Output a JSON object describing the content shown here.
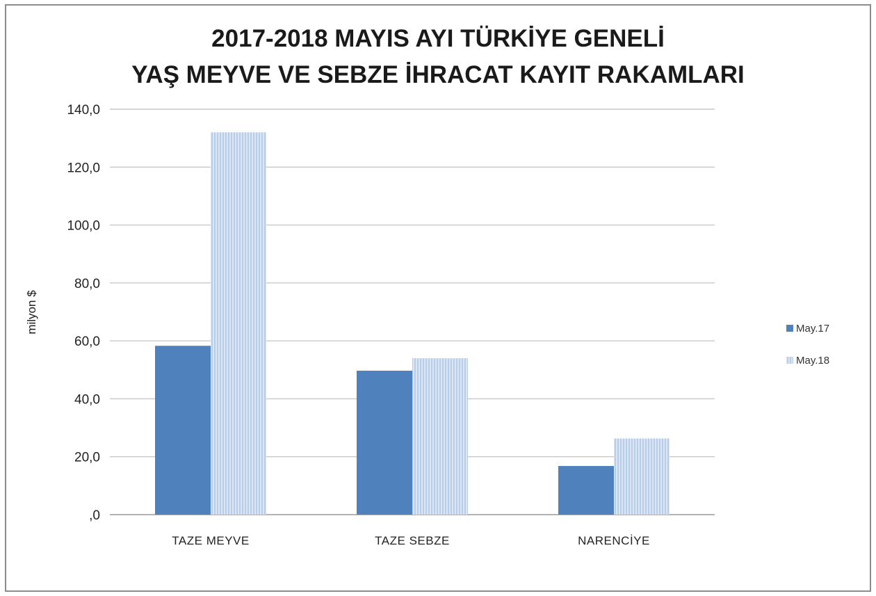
{
  "chart_data": {
    "type": "bar",
    "title_lines": [
      "2017-2018 MAYIS AYI TÜRKİYE GENELİ",
      "YAŞ MEYVE VE SEBZE İHRACAT KAYIT RAKAMLARI"
    ],
    "ylabel": "milyon $",
    "xlabel": "",
    "categories": [
      "TAZE MEYVE",
      "TAZE SEBZE",
      "NARENCİYE"
    ],
    "series": [
      {
        "name": "May.17",
        "values": [
          58.3,
          49.7,
          16.8
        ],
        "color": "#4f81bd",
        "pattern": "solid"
      },
      {
        "name": "May.18",
        "values": [
          132.0,
          54.0,
          26.3
        ],
        "color": "#c6d9f1",
        "pattern": "hatched"
      }
    ],
    "ylim": [
      0,
      140
    ],
    "yticks": [
      0,
      20,
      40,
      60,
      80,
      100,
      120,
      140
    ],
    "ytick_labels": [
      ",0",
      "20,0",
      "40,0",
      "60,0",
      "80,0",
      "100,0",
      "120,0",
      "140,0"
    ],
    "grid": true,
    "legend_position": "right"
  }
}
